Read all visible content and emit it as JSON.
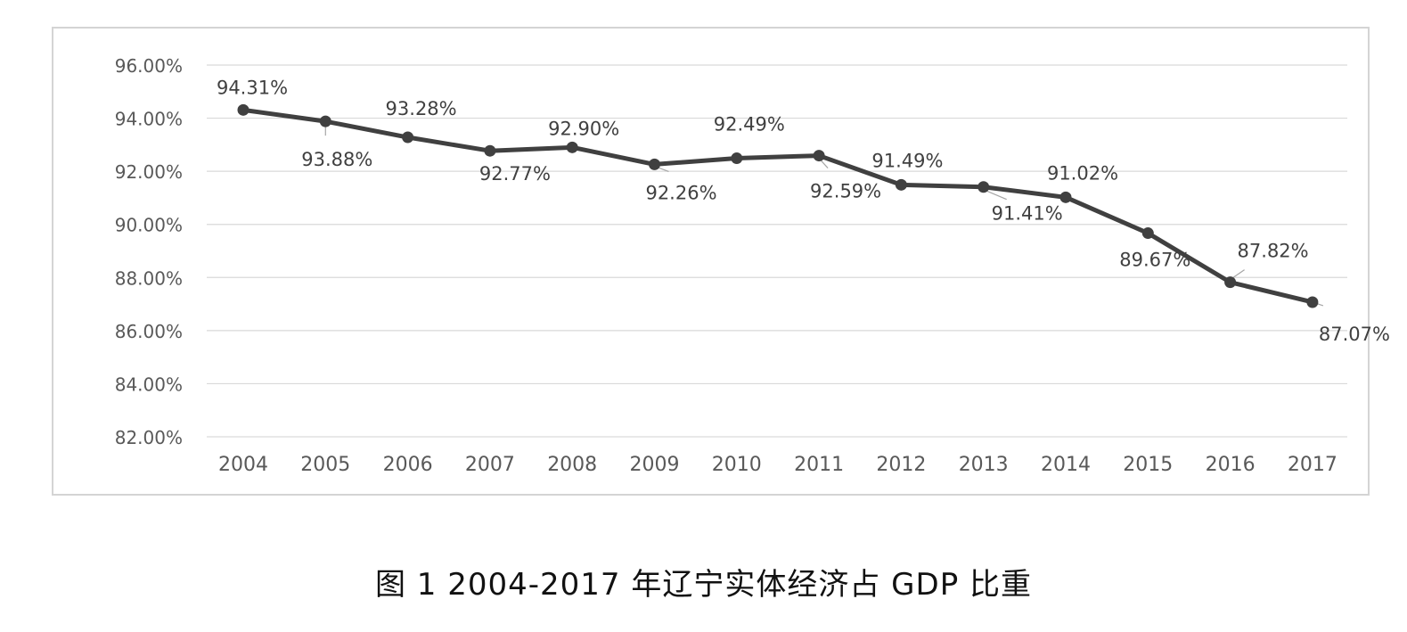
{
  "chart_data": {
    "type": "line",
    "categories": [
      "2004",
      "2005",
      "2006",
      "2007",
      "2008",
      "2009",
      "2010",
      "2011",
      "2012",
      "2013",
      "2014",
      "2015",
      "2016",
      "2017"
    ],
    "series": [
      {
        "values": [
          94.31,
          93.88,
          93.28,
          92.77,
          92.9,
          92.26,
          92.49,
          92.59,
          91.49,
          91.41,
          91.02,
          89.67,
          87.82,
          87.07
        ],
        "data_labels": [
          "94.31%",
          "93.88%",
          "93.28%",
          "92.77%",
          "92.90%",
          "92.26%",
          "92.49%",
          "92.59%",
          "91.49%",
          "91.41%",
          "91.02%",
          "89.67%",
          "87.82%",
          "87.07%"
        ]
      }
    ],
    "ylim": [
      82,
      96
    ],
    "yticks": [
      82,
      84,
      86,
      88,
      90,
      92,
      94,
      96
    ],
    "ytick_labels": [
      "82.00%",
      "84.00%",
      "86.00%",
      "88.00%",
      "90.00%",
      "92.00%",
      "94.00%",
      "96.00%"
    ],
    "grid": true,
    "legend": "none",
    "line_color": "#404040",
    "grid_color": "#d9d9d9"
  },
  "caption": "图 1  2004-2017 年辽宁实体经济占 GDP 比重"
}
